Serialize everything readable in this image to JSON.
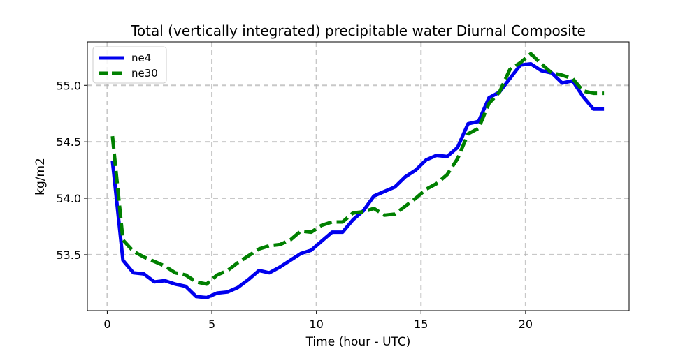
{
  "chart_data": {
    "type": "line",
    "title": "Total (vertically integrated) precipitable water Diurnal Composite",
    "xlabel": "Time (hour - UTC)",
    "ylabel": "kg/m2",
    "xlim": [
      -0.95,
      24.95
    ],
    "ylim": [
      53.005,
      55.385
    ],
    "xticks": [
      0,
      5,
      10,
      15,
      20
    ],
    "xtick_labels": [
      "0",
      "5",
      "10",
      "15",
      "20"
    ],
    "yticks": [
      53.5,
      54.0,
      54.5,
      55.0
    ],
    "ytick_labels": [
      "53.5",
      "54.0",
      "54.5",
      "55.0"
    ],
    "grid": true,
    "legend_position": "top-left",
    "x": [
      0.25,
      0.75,
      1.25,
      1.75,
      2.25,
      2.75,
      3.25,
      3.75,
      4.25,
      4.75,
      5.25,
      5.75,
      6.25,
      6.75,
      7.25,
      7.75,
      8.25,
      8.75,
      9.25,
      9.75,
      10.25,
      10.75,
      11.25,
      11.75,
      12.25,
      12.75,
      13.25,
      13.75,
      14.25,
      14.75,
      15.25,
      15.75,
      16.25,
      16.75,
      17.25,
      17.75,
      18.25,
      18.75,
      19.25,
      19.75,
      20.25,
      20.75,
      21.25,
      21.75,
      22.25,
      22.75,
      23.25,
      23.75
    ],
    "series": [
      {
        "name": "ne4",
        "color": "#0000ee",
        "style": "solid",
        "values": [
          54.33,
          53.45,
          53.34,
          53.33,
          53.26,
          53.27,
          53.24,
          53.22,
          53.13,
          53.12,
          53.16,
          53.17,
          53.21,
          53.28,
          53.36,
          53.34,
          53.39,
          53.45,
          53.51,
          53.54,
          53.62,
          53.7,
          53.7,
          53.81,
          53.89,
          54.02,
          54.06,
          54.1,
          54.19,
          54.25,
          54.34,
          54.38,
          54.37,
          54.45,
          54.66,
          54.68,
          54.89,
          54.94,
          55.06,
          55.18,
          55.19,
          55.13,
          55.11,
          55.02,
          55.04,
          54.9,
          54.79,
          54.79
        ]
      },
      {
        "name": "ne30",
        "color": "#008000",
        "style": "dashed",
        "values": [
          54.55,
          53.63,
          53.53,
          53.48,
          53.44,
          53.4,
          53.34,
          53.32,
          53.26,
          53.24,
          53.32,
          53.36,
          53.43,
          53.49,
          53.55,
          53.58,
          53.59,
          53.63,
          53.71,
          53.7,
          53.76,
          53.79,
          53.79,
          53.87,
          53.88,
          53.91,
          53.85,
          53.86,
          53.93,
          54.0,
          54.08,
          54.13,
          54.21,
          54.35,
          54.57,
          54.62,
          54.84,
          54.94,
          55.14,
          55.2,
          55.28,
          55.19,
          55.11,
          55.09,
          55.06,
          54.95,
          54.93,
          54.93
        ]
      }
    ]
  }
}
